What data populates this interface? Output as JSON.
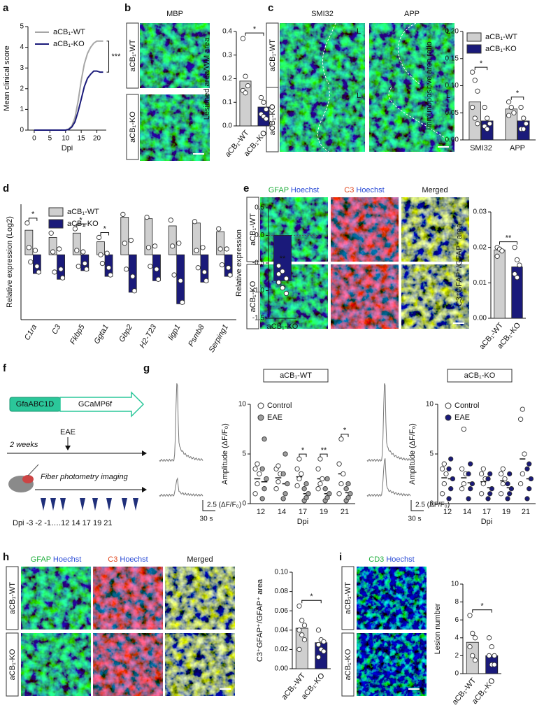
{
  "chart_data": [
    {
      "type": "line",
      "ylabel": "Mean clinical score",
      "xlabel": "Dpi",
      "x": [
        0,
        2,
        4,
        6,
        8,
        10,
        11,
        12,
        13,
        14,
        15,
        16,
        17,
        18,
        19,
        20,
        21,
        22
      ],
      "series": [
        {
          "name": "aCB₁-WT",
          "color": "#a6a6a6",
          "values": [
            0,
            0,
            0,
            0,
            0,
            0,
            0.05,
            0.2,
            0.6,
            1.4,
            2.4,
            3.2,
            3.7,
            4.0,
            4.2,
            4.3,
            4.3,
            4.3
          ]
        },
        {
          "name": "aCB₁-KO",
          "color": "#1a1a7a",
          "values": [
            0,
            0,
            0,
            0,
            0,
            0,
            0.03,
            0.15,
            0.4,
            0.9,
            1.5,
            2.1,
            2.5,
            2.7,
            2.85,
            2.85,
            2.8,
            2.8
          ]
        }
      ],
      "xlim": [
        -2,
        23
      ],
      "xticks": [
        0,
        5,
        10,
        15,
        20
      ],
      "ylim": [
        0,
        5
      ],
      "yticks": [
        0,
        1,
        2,
        3,
        4,
        5
      ],
      "annotation": "***",
      "legend": "upper left"
    },
    {
      "type": "bar",
      "ylabel": "Lesioned area/WM area",
      "categories": [
        "aCB₁-WT",
        "aCB₁-KO"
      ],
      "values": [
        0.19,
        0.08
      ],
      "colors": [
        "#cfcfcf",
        "#1a1a7a"
      ],
      "points": [
        [
          0.37,
          0.21,
          0.17,
          0.15,
          0.14
        ],
        [
          0.12,
          0.1,
          0.07,
          0.05,
          0.04,
          0.03
        ]
      ],
      "ylim": [
        0,
        0.4
      ],
      "yticks": [
        {
          "value": 0,
          "label": "0.0"
        },
        0.1,
        0.2,
        0.3,
        0.4
      ],
      "annotation": "*"
    },
    {
      "type": "bar",
      "ylabel": "Immunopositive area ratio",
      "categories": [
        "SMI32",
        "APP"
      ],
      "series": [
        {
          "name": "aCB₁-WT",
          "color": "#cfcfcf",
          "values": [
            0.07,
            0.057
          ],
          "points": [
            [
              0.125,
              0.11,
              0.09,
              0.06,
              0.04,
              0.03
            ],
            [
              0.07,
              0.06,
              0.05,
              0.045
            ]
          ]
        },
        {
          "name": "aCB₁-KO",
          "color": "#1a1a7a",
          "values": [
            0.035,
            0.035
          ],
          "points": [
            [
              0.06,
              0.04,
              0.03,
              0.025,
              0.02
            ],
            [
              0.06,
              0.04,
              0.03,
              0.02,
              0.02
            ]
          ]
        }
      ],
      "ylim": [
        0,
        0.2
      ],
      "yticks": [
        {
          "value": 0,
          "label": "0.00"
        },
        {
          "value": 0.05,
          "label": "0.05"
        },
        {
          "value": 0.1,
          "label": "0.10"
        },
        {
          "value": 0.15,
          "label": "0.15"
        },
        {
          "value": 0.2,
          "label": "0.20"
        }
      ],
      "annotations": [
        "*",
        "*"
      ],
      "legend": "upper right"
    },
    {
      "type": "bar",
      "ylabel": "Relative expression (Log2)",
      "categories": [
        "C1ra",
        "C3",
        "Fkbp5",
        "Ggta1",
        "Gbp2",
        "H2-T23",
        "Iigp1",
        "Psmb8",
        "Serping1"
      ],
      "series": [
        {
          "name": "aCB₁-WT",
          "color": "#cfcfcf",
          "values": [
            1.7,
            1.2,
            1.5,
            0.9,
            2.6,
            2.5,
            2.0,
            2.2,
            1.6
          ],
          "points": [
            [
              2.2,
              0.5,
              -0.5
            ],
            [
              1.5,
              0.2,
              -1.2
            ],
            [
              1.8,
              0.3,
              -0.8
            ],
            [
              1.2,
              0.0,
              -0.6
            ],
            [
              2.8,
              0.8,
              -1.0
            ],
            [
              2.6,
              0.5,
              -0.8
            ],
            [
              2.4,
              0.6,
              -1.4
            ],
            [
              2.3,
              0.3,
              -0.9
            ],
            [
              1.8,
              0.4,
              -0.7
            ]
          ]
        },
        {
          "name": "aCB₁-KO",
          "color": "#1a1a7a",
          "values": [
            -1.3,
            -1.7,
            -1.1,
            -1.5,
            -2.6,
            -1.8,
            -3.4,
            -1.9,
            -1.5
          ],
          "points": [
            [
              0.3,
              -0.8,
              -1.2
            ],
            [
              0.4,
              -1.0,
              -1.6
            ],
            [
              0.2,
              -0.6,
              -1.0
            ],
            [
              0.1,
              -0.9,
              -1.4
            ],
            [
              1.0,
              -1.5,
              -2.5
            ],
            [
              0.6,
              -1.0,
              -1.7
            ],
            [
              0.8,
              -1.8,
              -3.3
            ],
            [
              0.5,
              -1.2,
              -1.8
            ],
            [
              0.4,
              -0.9,
              -1.4
            ]
          ]
        }
      ],
      "ylim": [
        -4.5,
        3.5
      ],
      "annotations": [
        "*",
        null,
        "*",
        "*",
        null,
        null,
        null,
        null,
        null
      ],
      "legend": "upper left"
    },
    {
      "type": "bar",
      "ylabel": "Relative expression",
      "categories": [
        "aCB₁-KO"
      ],
      "values": [
        -0.82
      ],
      "colors": [
        "#1a1a7a"
      ],
      "points": [
        [
          -0.55,
          -0.65,
          -0.78,
          -0.85,
          -0.95,
          -1.05,
          -0.7
        ]
      ],
      "ylim": [
        -1.5,
        0.5
      ],
      "yticks": [
        -1.5,
        {
          "value": -1,
          "label": "-1.0"
        },
        -0.5,
        {
          "value": 0,
          "label": "0.0"
        },
        0.5
      ],
      "annotation": "**"
    },
    {
      "type": "bar",
      "ylabel": "C3⁺GFAP⁺/GFAP⁺ area",
      "categories": [
        "aCB₁-WT",
        "aCB₁-KO"
      ],
      "values": [
        0.0193,
        0.0145
      ],
      "colors": [
        "#cfcfcf",
        "#1a1a7a"
      ],
      "points": [
        [
          0.02,
          0.0195,
          0.019,
          0.0175
        ],
        [
          0.02,
          0.0165,
          0.015,
          0.0125,
          0.0115
        ]
      ],
      "ylim": [
        0,
        0.03
      ],
      "yticks": [
        {
          "value": 0,
          "label": "0.00"
        },
        {
          "value": 0.01,
          "label": "0.01"
        },
        {
          "value": 0.02,
          "label": "0.02"
        },
        {
          "value": 0.03,
          "label": "0.03"
        }
      ],
      "annotation": "**"
    },
    {
      "type": "scatter",
      "title": "aCB₁-WT",
      "ylabel": "Amplitude (ΔF/F₀)",
      "xlabel": "Dpi",
      "categories": [
        "12",
        "14",
        "17",
        "19",
        "21"
      ],
      "series": [
        {
          "name": "Control",
          "color": "#ffffff",
          "values": [
            2.5,
            2.6,
            2.7,
            2.5,
            3.0
          ],
          "points": [
            [
              1.0,
              2.0,
              3.0,
              3.5,
              4.0
            ],
            [
              1.5,
              2.2,
              3.0,
              3.5,
              3.8
            ],
            [
              1.8,
              2.5,
              3.0,
              3.5,
              4.5
            ],
            [
              1.5,
              2.0,
              2.5,
              3.5,
              4.5
            ],
            [
              1.0,
              2.0,
              3.0,
              4.0,
              6.5
            ]
          ]
        },
        {
          "name": "EAE",
          "color": "#9e9e9e",
          "values": [
            2.2,
            2.0,
            1.0,
            1.0,
            1.1
          ],
          "points": [
            [
              0.5,
              1.5,
              2.5,
              3.5,
              6.5
            ],
            [
              0.5,
              1.0,
              2.0,
              3.0,
              5.0
            ],
            [
              0.3,
              0.6,
              1.0,
              1.5,
              2.0
            ],
            [
              0.3,
              0.6,
              1.0,
              1.5,
              2.5
            ],
            [
              0.3,
              0.6,
              1.0,
              1.5,
              2.0
            ]
          ]
        }
      ],
      "ylim": [
        0,
        10
      ],
      "yticks": [
        0,
        5,
        10
      ],
      "annotations": [
        null,
        null,
        "*",
        "**",
        "*"
      ],
      "legend": "upper left"
    },
    {
      "type": "scatter",
      "title": "aCB₁-KO",
      "ylabel": "Amplitude (ΔF/F₀)",
      "xlabel": "Dpi",
      "categories": [
        "12",
        "14",
        "17",
        "19",
        "21"
      ],
      "series": [
        {
          "name": "Control",
          "color": "#ffffff",
          "values": [
            2.6,
            2.6,
            2.2,
            2.3,
            4.5
          ],
          "points": [
            [
              1.0,
              2.0,
              3.0,
              3.5,
              4.0
            ],
            [
              1.5,
              2.0,
              3.0,
              3.5,
              7.5
            ],
            [
              1.0,
              2.0,
              2.5,
              3.0,
              3.5
            ],
            [
              1.0,
              2.0,
              2.5,
              3.0,
              3.5
            ],
            [
              2.0,
              3.0,
              5.0,
              8.5,
              9.5
            ]
          ]
        },
        {
          "name": "EAE",
          "color": "#1a1a7a",
          "values": [
            2.5,
            2.1,
            1.6,
            1.6,
            2.5
          ],
          "points": [
            [
              0.5,
              1.5,
              2.5,
              3.5,
              4.5
            ],
            [
              0.5,
              1.5,
              2.0,
              3.0,
              4.0
            ],
            [
              0.5,
              1.0,
              1.5,
              2.5,
              3.0
            ],
            [
              0.5,
              1.0,
              1.5,
              2.0,
              3.0
            ],
            [
              0.5,
              1.5,
              2.5,
              3.5,
              4.0
            ]
          ]
        }
      ],
      "ylim": [
        0,
        10
      ],
      "yticks": [
        0,
        5,
        10
      ],
      "legend": "upper left"
    },
    {
      "type": "bar",
      "ylabel": "C3⁺GFAP⁺/GFAP⁺ area",
      "categories": [
        "aCB₁-WT",
        "aCB₁-KO"
      ],
      "values": [
        0.042,
        0.027
      ],
      "colors": [
        "#cfcfcf",
        "#1a1a7a"
      ],
      "points": [
        [
          0.065,
          0.05,
          0.045,
          0.04,
          0.035,
          0.03,
          0.02
        ],
        [
          0.04,
          0.03,
          0.028,
          0.025,
          0.02,
          0.018,
          0.012
        ]
      ],
      "ylim": [
        0,
        0.1
      ],
      "yticks": [
        {
          "value": 0,
          "label": "0.00"
        },
        {
          "value": 0.02,
          "label": "0.02"
        },
        {
          "value": 0.04,
          "label": "0.04"
        },
        {
          "value": 0.06,
          "label": "0.06"
        },
        {
          "value": 0.08,
          "label": "0.08"
        },
        {
          "value": 0.1,
          "label": "0.10"
        }
      ],
      "annotation": "*"
    },
    {
      "type": "bar",
      "ylabel": "Lesion number",
      "categories": [
        "aCB₁-WT",
        "aCB₁-KO"
      ],
      "values": [
        3.5,
        2.0
      ],
      "colors": [
        "#cfcfcf",
        "#1a1a7a"
      ],
      "points": [
        [
          6.5,
          4.5,
          4,
          3,
          2,
          1.5
        ],
        [
          4,
          3,
          2,
          2,
          1,
          1
        ]
      ],
      "ylim": [
        0,
        10
      ],
      "yticks": [
        0,
        2,
        4,
        6,
        8,
        10
      ],
      "annotation": "*"
    }
  ],
  "figure": {
    "panel_letters": [
      "a",
      "b",
      "c",
      "d",
      "e",
      "f",
      "g",
      "h",
      "i"
    ],
    "mbp": "MBP",
    "c_headers": [
      "SMI32",
      "APP"
    ],
    "lesion_mark": "L",
    "row_labels": [
      "aCB₁-WT",
      "aCB₁-KO"
    ],
    "stains": {
      "gfap": "GFAP",
      "hoechst": "Hoechst",
      "c3": "C3",
      "merged": "Merged",
      "cd3": "CD3"
    },
    "f": {
      "promoter": "GfaABC1D",
      "reporter": "GCaMP6f",
      "eae": "EAE",
      "duration": "2 weeks",
      "imaging": "Fiber photometry imaging",
      "timeline": "Dpi -3 -2 -1….12 14 17 19 21"
    },
    "g_scale": {
      "y": "2.5 (ΔF/F₀)",
      "x": "30 s"
    }
  }
}
